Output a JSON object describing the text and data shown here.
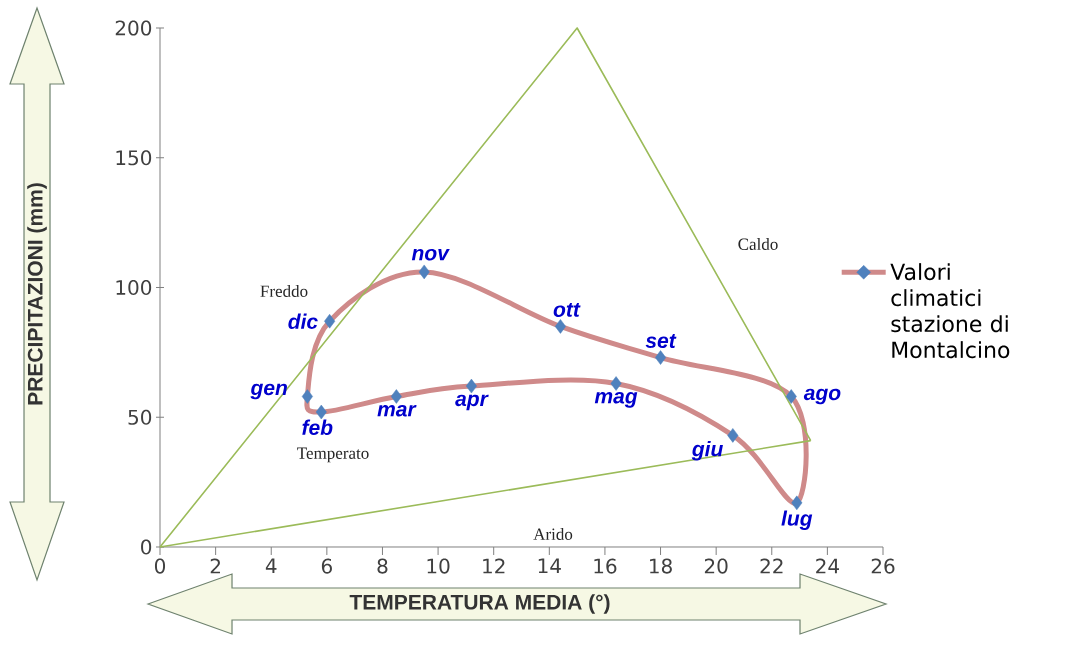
{
  "chart_data": {
    "type": "scatter",
    "xlabel": "TEMPERATURA MEDIA (°)",
    "ylabel": "PRECIPITAZIONI (mm)",
    "series": [
      {
        "name": "Valori climatici stazione di Montalcino",
        "color": "#4f81bd",
        "marker": "diamond",
        "x": [
          5.3,
          5.8,
          8.5,
          11.2,
          16.4,
          20.6,
          22.9,
          22.7,
          18.0,
          14.4,
          9.5,
          6.1
        ],
        "values": [
          58,
          52,
          58,
          62,
          63,
          43,
          17,
          58,
          73,
          85,
          106,
          87
        ]
      },
      {
        "type": "line",
        "color": "#9bbb59",
        "marker": "none",
        "x": [
          0,
          15,
          23.4
        ],
        "values": [
          0,
          200,
          41
        ]
      },
      {
        "type": "line",
        "color": "#9bbb59",
        "marker": "none",
        "x": [
          0,
          23.4
        ],
        "values": [
          0,
          41
        ]
      }
    ],
    "annotations": [
      {
        "text": "gen",
        "x": 5.3,
        "y": 58
      },
      {
        "text": "feb",
        "x": 5.8,
        "y": 52
      },
      {
        "text": "mar",
        "x": 8.5,
        "y": 58
      },
      {
        "text": "apr",
        "x": 11.2,
        "y": 62
      },
      {
        "text": "mag",
        "x": 16.4,
        "y": 63
      },
      {
        "text": "giu",
        "x": 20.6,
        "y": 43
      },
      {
        "text": "lug",
        "x": 22.9,
        "y": 17
      },
      {
        "text": "ago",
        "x": 22.7,
        "y": 58
      },
      {
        "text": "set",
        "x": 18.0,
        "y": 73
      },
      {
        "text": "ott",
        "x": 14.4,
        "y": 85
      },
      {
        "text": "nov",
        "x": 9.5,
        "y": 106
      },
      {
        "text": "dic",
        "x": 6.1,
        "y": 87
      },
      "Freddo",
      "Caldo",
      "Temperato",
      "Arido"
    ],
    "xlim": [
      0,
      26
    ],
    "xticks": [
      0,
      2,
      4,
      6,
      8,
      10,
      12,
      14,
      16,
      18,
      20,
      22,
      24,
      26
    ],
    "ylim": [
      0,
      200
    ],
    "yticks": [
      0,
      50,
      100,
      150,
      200
    ],
    "grid": false,
    "legend": "right",
    "line_style": "solid"
  }
}
